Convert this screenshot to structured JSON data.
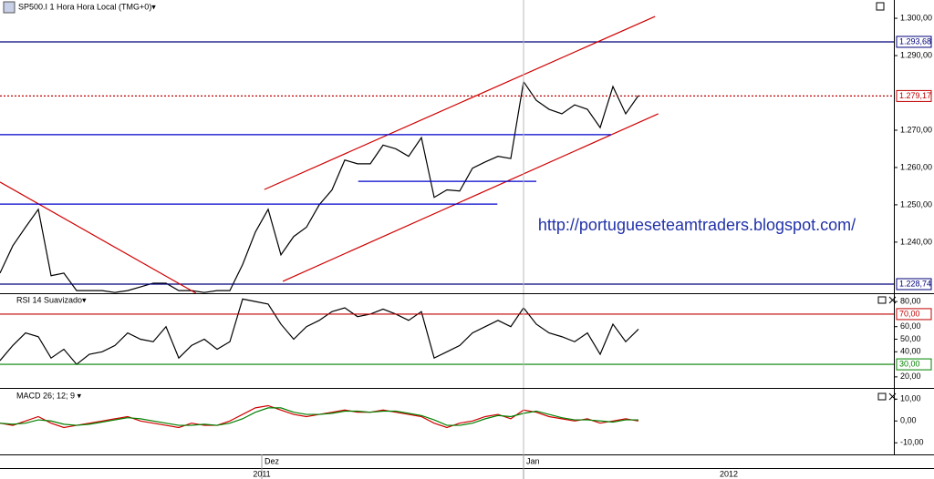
{
  "chart_data": [
    {
      "type": "line",
      "title": "SP500.I 1 Hora Hora Local (TMG+0)▾",
      "color": "#000000",
      "annotation": "http://portugueseteamtraders.blogspot.com/",
      "xlim": [
        0,
        140
      ],
      "ylim": [
        1226.3,
        1304.9
      ],
      "yticks": [
        {
          "value": 1300,
          "label": "1.300,00"
        },
        {
          "value": 1290,
          "label": "1.290,00"
        },
        {
          "value": 1270,
          "label": "1.270,00"
        },
        {
          "value": 1260,
          "label": "1.260,00"
        },
        {
          "value": 1250,
          "label": "1.250,00"
        },
        {
          "value": 1240,
          "label": "1.240,00"
        }
      ],
      "x": [
        0,
        2,
        4,
        6,
        8,
        10,
        12,
        14,
        16,
        18,
        20,
        22,
        24,
        26,
        28,
        30,
        32,
        34,
        36,
        38,
        40,
        42,
        44,
        46,
        48,
        50,
        52,
        54,
        56,
        58,
        60,
        62,
        64,
        66,
        68,
        70,
        72,
        74,
        76,
        78,
        80,
        82,
        84,
        86,
        88,
        90,
        92,
        94,
        96,
        98,
        100
      ],
      "values": [
        1231.7,
        1239,
        1244,
        1248.8,
        1231,
        1231.7,
        1227,
        1227,
        1227,
        1226.5,
        1227,
        1228,
        1229,
        1229,
        1227,
        1227,
        1226.5,
        1227,
        1227,
        1234,
        1242.7,
        1248.8,
        1236.6,
        1241.5,
        1244,
        1250,
        1254,
        1262,
        1261,
        1261,
        1266,
        1265,
        1263,
        1268,
        1252,
        1254,
        1253.7,
        1259.8,
        1261.5,
        1263,
        1262.4,
        1283,
        1278,
        1275.6,
        1274.4,
        1276.8,
        1275.6,
        1270.7,
        1281.7,
        1274.4,
        1279.3
      ],
      "levels": [
        {
          "value": 1293.68,
          "label": "1.293,68",
          "color": "#00007a",
          "style": "solid"
        },
        {
          "value": 1279.17,
          "label": "1.279,17",
          "color": "#c00000",
          "style": "dotted"
        },
        {
          "value": 1228.74,
          "label": "1.228,74",
          "color": "#00007a",
          "style": "solid"
        }
      ],
      "drawings": [
        {
          "x": [
            41.4,
            102.6
          ],
          "y": [
            1254.1,
            1300.5
          ],
          "color": "#d00000"
        },
        {
          "x": [
            44.3,
            103.1
          ],
          "y": [
            1229.5,
            1274.4
          ],
          "color": "#d00000"
        },
        {
          "x": [
            0,
            30.7
          ],
          "y": [
            1256.1,
            1226.3
          ],
          "color": "#d00000"
        },
        {
          "x": [
            0,
            95.7
          ],
          "y": [
            1268.8,
            1268.8
          ],
          "color": "#0000cc"
        },
        {
          "x": [
            0,
            77.9
          ],
          "y": [
            1250.2,
            1250.2
          ],
          "color": "#0000cc"
        },
        {
          "x": [
            56.1,
            84
          ],
          "y": [
            1256.3,
            1256.3
          ],
          "color": "#0000cc"
        }
      ]
    },
    {
      "type": "line",
      "title": "RSI 14 Suavizado▾",
      "color": "#000000",
      "xlim": [
        0,
        140
      ],
      "ylim": [
        11.2,
        85.9
      ],
      "yticks": [
        {
          "value": 80,
          "label": "80,00"
        },
        {
          "value": 60,
          "label": "60,00"
        },
        {
          "value": 50,
          "label": "50,00"
        },
        {
          "value": 40,
          "label": "40,00"
        },
        {
          "value": 20,
          "label": "20,00"
        }
      ],
      "x": [
        0,
        2,
        4,
        6,
        8,
        10,
        12,
        14,
        16,
        18,
        20,
        22,
        24,
        26,
        28,
        30,
        32,
        34,
        36,
        38,
        40,
        42,
        44,
        46,
        48,
        50,
        52,
        54,
        56,
        58,
        60,
        62,
        64,
        66,
        68,
        70,
        72,
        74,
        76,
        78,
        80,
        82,
        84,
        86,
        88,
        90,
        92,
        94,
        96,
        98,
        100
      ],
      "values": [
        33,
        45,
        55,
        52,
        35,
        42,
        30,
        38,
        40,
        45,
        55,
        50,
        48,
        60,
        35,
        45,
        50,
        42,
        48,
        82,
        80,
        78,
        62,
        50,
        60,
        65,
        72,
        75,
        68,
        70,
        74,
        70,
        65,
        72,
        35,
        40,
        45,
        55,
        60,
        65,
        60,
        75,
        62,
        55,
        52,
        48,
        55,
        38,
        62,
        48,
        58
      ],
      "levels": [
        {
          "value": 70,
          "label": "70,00",
          "color": "#c00000",
          "style": "solid"
        },
        {
          "value": 30,
          "label": "30,00",
          "color": "#008000",
          "style": "solid"
        }
      ]
    },
    {
      "type": "line",
      "title": "MACD 26; 12; 9 ▾",
      "xlim": [
        0,
        140
      ],
      "ylim": [
        -15.3,
        14.7
      ],
      "yticks": [
        {
          "value": 10,
          "label": "10,00"
        },
        {
          "value": 0,
          "label": "0,00"
        },
        {
          "value": -10,
          "label": "-10,00"
        }
      ],
      "xticks": [
        {
          "value": 41,
          "label": "Dez"
        },
        {
          "value": 82,
          "label": "Jan"
        }
      ],
      "years": [
        "2011",
        "2012"
      ],
      "x": [
        0,
        2,
        4,
        6,
        8,
        10,
        12,
        14,
        16,
        18,
        20,
        22,
        24,
        26,
        28,
        30,
        32,
        34,
        36,
        38,
        40,
        42,
        44,
        46,
        48,
        50,
        52,
        54,
        56,
        58,
        60,
        62,
        64,
        66,
        68,
        70,
        72,
        74,
        76,
        78,
        80,
        82,
        84,
        86,
        88,
        90,
        92,
        94,
        96,
        98,
        100
      ],
      "series": [
        {
          "color": "#d00000",
          "values": [
            -1,
            -2,
            0,
            2,
            -1,
            -3,
            -2,
            -1,
            0,
            1,
            2,
            0,
            -1,
            -2,
            -3,
            -1,
            -2,
            -2,
            0,
            3,
            6,
            7,
            5,
            3,
            2,
            3,
            4,
            5,
            4,
            4,
            5,
            4,
            3,
            2,
            -1,
            -3,
            -1,
            0,
            2,
            3,
            1,
            5,
            4,
            2,
            1,
            0,
            1,
            -1,
            0,
            1,
            0
          ]
        },
        {
          "color": "#008000",
          "values": [
            -1,
            -1.5,
            -1,
            0.5,
            0,
            -1.5,
            -2,
            -1.5,
            -0.5,
            0.5,
            1.5,
            1,
            0,
            -1,
            -2,
            -2,
            -1.5,
            -2,
            -1,
            1,
            4,
            6,
            6,
            4,
            3,
            3,
            3.5,
            4.5,
            4.5,
            4,
            4.5,
            4.5,
            3.5,
            2.5,
            0.5,
            -2,
            -2,
            -1,
            1,
            2.5,
            2,
            3.5,
            4.5,
            3,
            1.5,
            0.5,
            0.5,
            0,
            -0.5,
            0.5,
            0.5
          ]
        }
      ]
    }
  ]
}
